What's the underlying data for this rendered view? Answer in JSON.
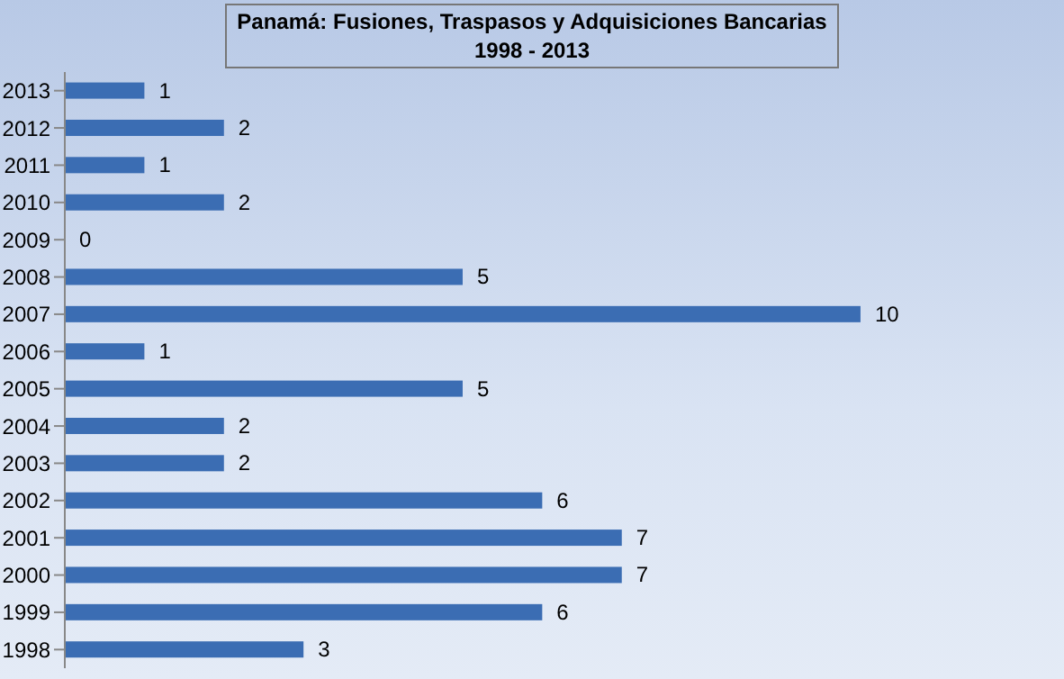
{
  "chart_data": {
    "type": "bar",
    "orientation": "horizontal",
    "title": "Panamá: Fusiones, Traspasos y Adquisiciones Bancarias",
    "subtitle": "1998 - 2013",
    "categories": [
      "2013",
      "2012",
      "2011",
      "2010",
      "2009",
      "2008",
      "2007",
      "2006",
      "2005",
      "2004",
      "2003",
      "2002",
      "2001",
      "2000",
      "1999",
      "1998"
    ],
    "values": [
      1,
      2,
      1,
      2,
      0,
      5,
      10,
      1,
      5,
      2,
      2,
      6,
      7,
      7,
      6,
      3
    ],
    "color": "#3b6db3",
    "data_labels": true,
    "grid": false,
    "legend": false
  }
}
